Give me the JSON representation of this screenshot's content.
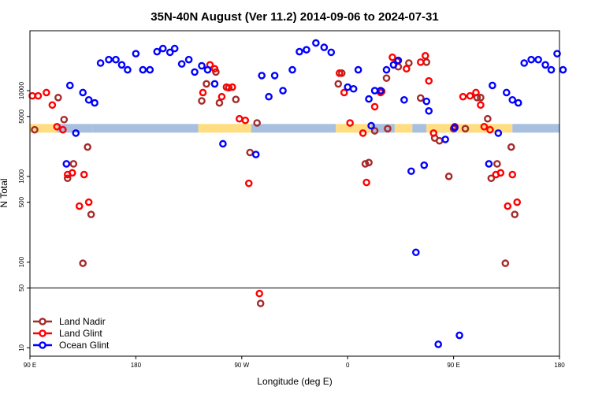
{
  "chart_data": {
    "type": "scatter",
    "title": "35N-40N August (Ver 11.2)   2014-09-06 to 2024-07-31",
    "xlabel": "Longitude (deg E)",
    "ylabel": "N Total",
    "y_scale": "log",
    "ylim": [
      8,
      50000
    ],
    "xlim": [
      90,
      540
    ],
    "x_ticks": [
      {
        "value": 90,
        "label": "90 E"
      },
      {
        "value": 180,
        "label": "180"
      },
      {
        "value": 270,
        "label": "90 W"
      },
      {
        "value": 360,
        "label": "0"
      },
      {
        "value": 450,
        "label": "90 E"
      },
      {
        "value": 540,
        "label": "180"
      }
    ],
    "y_ticks": [
      {
        "value": 10,
        "label": "10"
      },
      {
        "value": 50,
        "label": "50"
      },
      {
        "value": 100,
        "label": "100"
      },
      {
        "value": 500,
        "label": "500"
      },
      {
        "value": 1000,
        "label": "1000"
      },
      {
        "value": 5000,
        "label": "5000"
      },
      {
        "value": 10000,
        "label": "10000"
      }
    ],
    "reference_line": 50,
    "legend_position": "bottom-left",
    "series": [
      {
        "name": "Land Nadir",
        "color": "#a52a2a",
        "points": [
          [
            94,
            3500
          ],
          [
            114,
            8300
          ],
          [
            119,
            4600
          ],
          [
            122,
            950
          ],
          [
            127,
            1400
          ],
          [
            135,
            97
          ],
          [
            139,
            2200
          ],
          [
            142,
            360
          ],
          [
            240,
            12000
          ],
          [
            236,
            7600
          ],
          [
            248,
            16500
          ],
          [
            251,
            7200
          ],
          [
            259,
            10800
          ],
          [
            265,
            7900
          ],
          [
            277,
            1900
          ],
          [
            283,
            4200
          ],
          [
            286,
            33
          ],
          [
            352,
            12000
          ],
          [
            355,
            16000
          ],
          [
            375,
            1400
          ],
          [
            378,
            1450
          ],
          [
            383,
            3400
          ],
          [
            389,
            9800
          ],
          [
            393,
            14000
          ],
          [
            394,
            3600
          ],
          [
            403,
            19000
          ],
          [
            412,
            21000
          ],
          [
            422,
            8200
          ],
          [
            427,
            21500
          ],
          [
            434,
            2800
          ],
          [
            438,
            2600
          ],
          [
            446,
            1000
          ],
          [
            450,
            3600
          ],
          [
            460,
            3600
          ],
          [
            470,
            8300
          ],
          [
            473,
            8300
          ],
          [
            479,
            4700
          ],
          [
            482,
            950
          ],
          [
            487,
            1400
          ],
          [
            494,
            97
          ],
          [
            499,
            2200
          ],
          [
            502,
            360
          ]
        ]
      },
      {
        "name": "Land Glint",
        "color": "#ff0000",
        "points": [
          [
            92,
            8700
          ],
          [
            97,
            8700
          ],
          [
            104,
            9500
          ],
          [
            109,
            6800
          ],
          [
            113,
            3800
          ],
          [
            118,
            3500
          ],
          [
            122,
            1050
          ],
          [
            126,
            1100
          ],
          [
            132,
            450
          ],
          [
            136,
            1050
          ],
          [
            140,
            500
          ],
          [
            237,
            9500
          ],
          [
            243,
            20000
          ],
          [
            247,
            18000
          ],
          [
            253,
            8500
          ],
          [
            257,
            11000
          ],
          [
            262,
            11000
          ],
          [
            268,
            4700
          ],
          [
            273,
            4500
          ],
          [
            276,
            830
          ],
          [
            285,
            43
          ],
          [
            353,
            16000
          ],
          [
            357,
            9500
          ],
          [
            362,
            4200
          ],
          [
            373,
            3200
          ],
          [
            376,
            850
          ],
          [
            383,
            6500
          ],
          [
            388,
            9500
          ],
          [
            398,
            24500
          ],
          [
            402,
            22000
          ],
          [
            410,
            18000
          ],
          [
            422,
            21500
          ],
          [
            426,
            25500
          ],
          [
            429,
            13000
          ],
          [
            433,
            3200
          ],
          [
            451,
            3800
          ],
          [
            458,
            8500
          ],
          [
            464,
            8700
          ],
          [
            469,
            9500
          ],
          [
            473,
            6800
          ],
          [
            476,
            3800
          ],
          [
            481,
            3500
          ],
          [
            486,
            1050
          ],
          [
            490,
            1100
          ],
          [
            496,
            450
          ],
          [
            500,
            1050
          ],
          [
            504,
            500
          ]
        ]
      },
      {
        "name": "Ocean Glint",
        "color": "#0000ff",
        "points": [
          [
            121,
            1400
          ],
          [
            124,
            11500
          ],
          [
            129,
            3200
          ],
          [
            135,
            9500
          ],
          [
            140,
            7800
          ],
          [
            145,
            7200
          ],
          [
            150,
            21000
          ],
          [
            157,
            23000
          ],
          [
            163,
            23000
          ],
          [
            168,
            20000
          ],
          [
            173,
            17500
          ],
          [
            180,
            27000
          ],
          [
            186,
            17500
          ],
          [
            192,
            17500
          ],
          [
            198,
            28500
          ],
          [
            203,
            31000
          ],
          [
            209,
            28000
          ],
          [
            213,
            31000
          ],
          [
            219,
            20500
          ],
          [
            225,
            23000
          ],
          [
            230,
            16500
          ],
          [
            236,
            19500
          ],
          [
            241,
            17500
          ],
          [
            247,
            12000
          ],
          [
            254,
            2400
          ],
          [
            282,
            1800
          ],
          [
            287,
            15000
          ],
          [
            293,
            8500
          ],
          [
            298,
            15000
          ],
          [
            305,
            10000
          ],
          [
            313,
            17500
          ],
          [
            319,
            28500
          ],
          [
            325,
            30000
          ],
          [
            333,
            36000
          ],
          [
            340,
            32000
          ],
          [
            346,
            28000
          ],
          [
            360,
            11000
          ],
          [
            365,
            10500
          ],
          [
            369,
            17500
          ],
          [
            378,
            8000
          ],
          [
            380,
            3900
          ],
          [
            383,
            10000
          ],
          [
            388,
            10000
          ],
          [
            393,
            17500
          ],
          [
            399,
            20000
          ],
          [
            403,
            22500
          ],
          [
            408,
            7800
          ],
          [
            414,
            1150
          ],
          [
            418,
            130
          ],
          [
            425,
            1350
          ],
          [
            427,
            7500
          ],
          [
            429,
            5800
          ],
          [
            437,
            11
          ],
          [
            443,
            2700
          ],
          [
            451,
            3700
          ],
          [
            455,
            14
          ],
          [
            480,
            1400
          ],
          [
            483,
            11500
          ],
          [
            488,
            3200
          ],
          [
            495,
            9500
          ],
          [
            500,
            7800
          ],
          [
            505,
            7200
          ],
          [
            510,
            21000
          ],
          [
            516,
            23000
          ],
          [
            522,
            23000
          ],
          [
            528,
            20000
          ],
          [
            533,
            17500
          ],
          [
            538,
            27000
          ],
          [
            543,
            17500
          ]
        ]
      }
    ],
    "background_bands": {
      "level": 3600,
      "segments": [
        {
          "from": 90,
          "to": 113,
          "color": "#ffdd80"
        },
        {
          "from": 113,
          "to": 143,
          "color": "#a8bfdf"
        },
        {
          "from": 143,
          "to": 233,
          "color": "#a8bfdf"
        },
        {
          "from": 233,
          "to": 278,
          "color": "#ffdd80"
        },
        {
          "from": 278,
          "to": 350,
          "color": "#a8bfdf"
        },
        {
          "from": 350,
          "to": 380,
          "color": "#ffdd80"
        },
        {
          "from": 380,
          "to": 400,
          "color": "#a8bfdf"
        },
        {
          "from": 400,
          "to": 415,
          "color": "#ffdd80"
        },
        {
          "from": 415,
          "to": 427,
          "color": "#a8bfdf"
        },
        {
          "from": 427,
          "to": 450,
          "color": "#ffdd80"
        },
        {
          "from": 450,
          "to": 453,
          "color": "#a8bfdf"
        },
        {
          "from": 453,
          "to": 500,
          "color": "#ffdd80"
        },
        {
          "from": 500,
          "to": 540,
          "color": "#a8bfdf"
        }
      ]
    }
  }
}
